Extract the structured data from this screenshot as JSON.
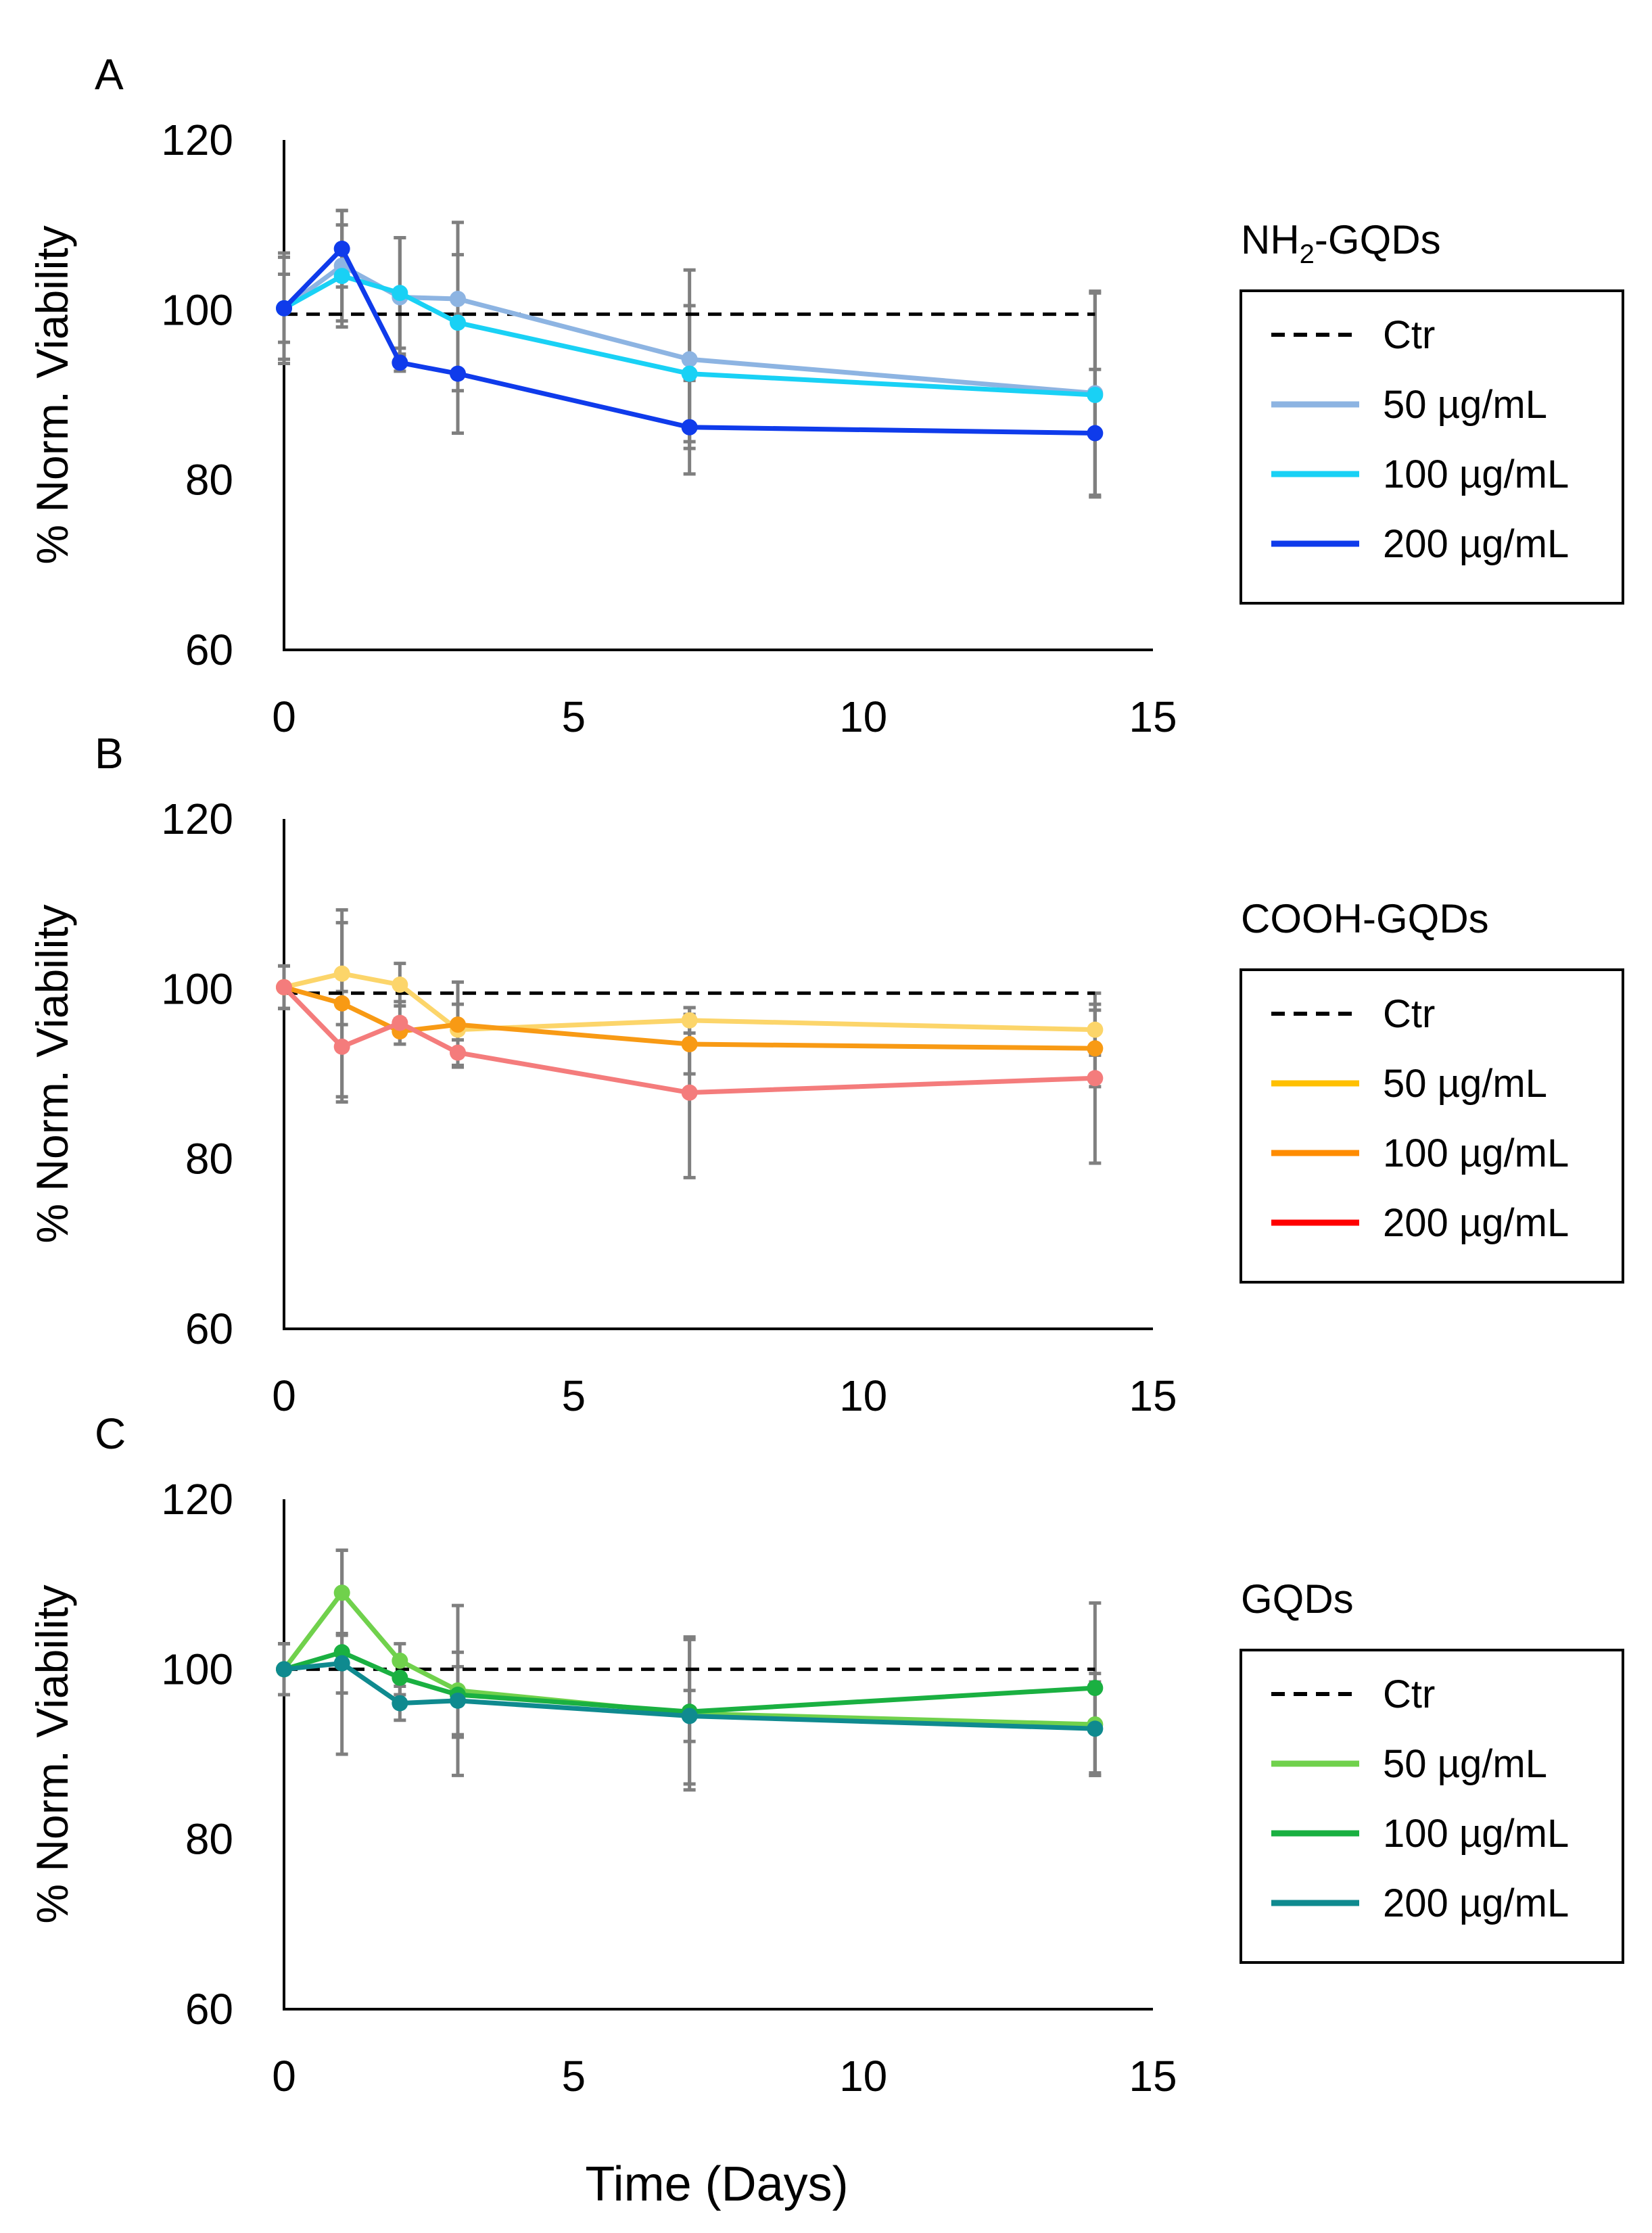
{
  "figure": {
    "xlabel": "Time (Days)"
  },
  "chart_data": [
    {
      "type": "line",
      "panel": "A",
      "legend_title": "NH2-GQDs",
      "legend_title_parts": {
        "pre": "NH",
        "sub": "2",
        "post": "-GQDs"
      },
      "ylabel": "% Norm. Viability",
      "xlabel": "Time (Days)",
      "xlim": [
        0,
        15
      ],
      "ylim": [
        60,
        120
      ],
      "xticks": [
        "0",
        "5",
        "10",
        "15"
      ],
      "yticks": [
        "60",
        "80",
        "100",
        "120"
      ],
      "x": [
        0,
        1,
        2,
        3,
        7,
        14
      ],
      "control": {
        "name": "Ctr",
        "value": 99.5,
        "x_range": [
          0,
          14
        ],
        "color": "#000000"
      },
      "series": [
        {
          "name": "50 µg/mL",
          "color": "#8DB4E2",
          "values": [
            100.2,
            105.2,
            101.5,
            101.3,
            94.2,
            90.2
          ],
          "errors": [
            6.5,
            6.5,
            7.0,
            9.0,
            10.5,
            12.0
          ]
        },
        {
          "name": "100 µg/mL",
          "color": "#19D1F5",
          "values": [
            100.2,
            104.0,
            102.0,
            98.5,
            92.5,
            90.0
          ],
          "errors": [
            6.0,
            6.0,
            6.5,
            8.0,
            8.0,
            12.0
          ]
        },
        {
          "name": "200 µg/mL",
          "color": "#0F3BEB",
          "values": [
            100.2,
            107.2,
            93.8,
            92.5,
            86.2,
            85.5
          ],
          "errors": [
            4.0,
            4.5,
            1.0,
            7.0,
            5.5,
            7.5
          ]
        }
      ]
    },
    {
      "type": "line",
      "panel": "B",
      "legend_title": "COOH-GQDs",
      "ylabel": "% Norm. Viability",
      "xlabel": "Time (Days)",
      "xlim": [
        0,
        15
      ],
      "ylim": [
        60,
        120
      ],
      "xticks": [
        "0",
        "5",
        "10",
        "15"
      ],
      "yticks": [
        "60",
        "80",
        "100",
        "120"
      ],
      "x": [
        0,
        1,
        2,
        3,
        7,
        14
      ],
      "control": {
        "name": "Ctr",
        "value": 99.5,
        "x_range": [
          0,
          14
        ],
        "color": "#000000"
      },
      "series": [
        {
          "name": "50 µg/mL",
          "color": "#FFC000",
          "line_color": "#FCD56A",
          "values": [
            100.2,
            101.8,
            100.5,
            95.2,
            96.3,
            95.2
          ],
          "errors": [
            2.5,
            6.0,
            2.5,
            3.0,
            1.5,
            3.0
          ]
        },
        {
          "name": "100 µg/mL",
          "color": "#FF8C00",
          "line_color": "#F89A14",
          "values": [
            100.2,
            98.3,
            95.0,
            95.8,
            93.5,
            93.0
          ],
          "errors": [
            2.5,
            11.0,
            1.5,
            5.0,
            3.5,
            4.5
          ]
        },
        {
          "name": "200 µg/mL",
          "color": "#FF0000",
          "line_color": "#F47C7C",
          "values": [
            100.2,
            93.2,
            96.0,
            92.5,
            87.8,
            89.5
          ],
          "errors": [
            2.5,
            6.5,
            2.5,
            1.5,
            10.0,
            10.0
          ]
        }
      ]
    },
    {
      "type": "line",
      "panel": "C",
      "legend_title": "GQDs",
      "ylabel": "% Norm. Viability",
      "xlabel": "Time (Days)",
      "xlim": [
        0,
        15
      ],
      "ylim": [
        60,
        120
      ],
      "xticks": [
        "0",
        "5",
        "10",
        "15"
      ],
      "yticks": [
        "60",
        "80",
        "100",
        "120"
      ],
      "x": [
        0,
        1,
        2,
        3,
        7,
        14
      ],
      "control": {
        "name": "Ctr",
        "value": 100,
        "x_range": [
          0,
          14
        ],
        "color": "#000000"
      },
      "series": [
        {
          "name": "50 µg/mL",
          "color": "#70D14C",
          "values": [
            100.0,
            109.0,
            101.0,
            97.5,
            94.8,
            93.5
          ],
          "errors": [
            3.0,
            5.0,
            2.0,
            10.0,
            9.0,
            6.0
          ]
        },
        {
          "name": "100 µg/mL",
          "color": "#1AB041",
          "values": [
            100.0,
            102.0,
            99.0,
            97.0,
            95.0,
            97.8
          ],
          "errors": [
            3.0,
            12.0,
            2.0,
            5.0,
            8.5,
            10.0
          ]
        },
        {
          "name": "200 µg/mL",
          "color": "#0F8A8F",
          "values": [
            100.0,
            100.7,
            96.0,
            96.3,
            94.5,
            93.0
          ],
          "errors": [
            3.0,
            3.5,
            2.0,
            4.0,
            3.0,
            5.5
          ]
        }
      ]
    }
  ]
}
